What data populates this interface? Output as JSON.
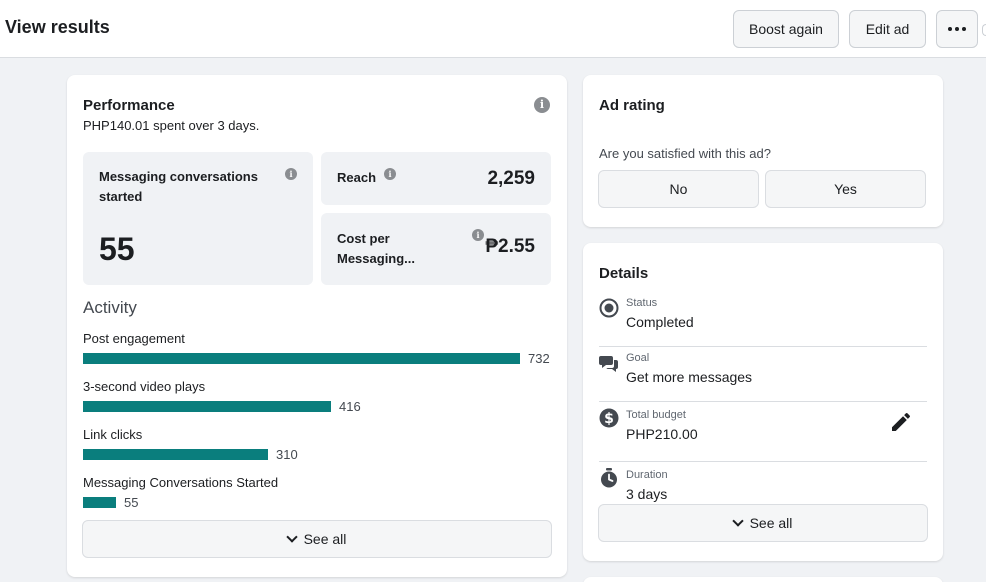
{
  "header": {
    "title": "View results",
    "boost_label": "Boost again",
    "edit_label": "Edit ad"
  },
  "performance": {
    "title": "Performance",
    "spent_amount": "PHP140.01",
    "spent_mid": " spent over ",
    "spent_days": "3 days",
    "spent_end": ".",
    "tiles": {
      "messaging": {
        "label": "Messaging conversations started",
        "value": "55"
      },
      "reach": {
        "label": "Reach",
        "value": "2,259"
      },
      "cost": {
        "label_line1": "Cost per",
        "label_line2": "Messaging...",
        "value": "₱2.55"
      }
    }
  },
  "activity": {
    "title": "Activity",
    "max": 732,
    "items": [
      {
        "label": "Post engagement",
        "value": 732
      },
      {
        "label": "3-second video plays",
        "value": 416
      },
      {
        "label": "Link clicks",
        "value": 310
      },
      {
        "label": "Messaging Conversations Started",
        "value": 55
      }
    ],
    "see_all": "See all"
  },
  "ad_rating": {
    "title": "Ad rating",
    "question": "Are you satisfied with this ad?",
    "no_label": "No",
    "yes_label": "Yes"
  },
  "details": {
    "title": "Details",
    "rows": [
      {
        "label": "Status",
        "value": "Completed",
        "icon": "status-icon"
      },
      {
        "label": "Goal",
        "value": "Get more messages",
        "icon": "chat-icon"
      },
      {
        "label": "Total budget",
        "value": "PHP210.00",
        "icon": "dollar-icon"
      },
      {
        "label": "Duration",
        "value": "3 days",
        "icon": "stopwatch-icon"
      }
    ],
    "see_all": "See all"
  },
  "colors": {
    "bar": "#0a7e7d",
    "background": "#f0f2f5"
  }
}
